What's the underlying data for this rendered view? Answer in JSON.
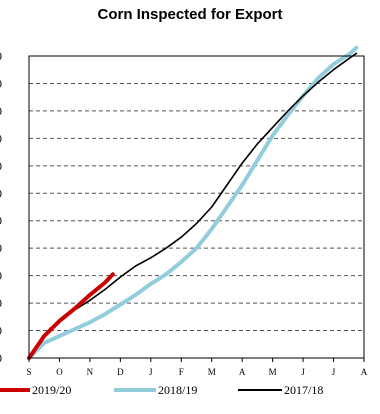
{
  "chart_data": {
    "type": "line",
    "title": "Corn Inspected for Export",
    "xlabel": "",
    "ylabel": "",
    "x_ticks": [
      "S",
      "O",
      "N",
      "D",
      "J",
      "F",
      "M",
      "A",
      "M",
      "J",
      "J",
      "A"
    ],
    "y_tick_labels": [
      "0",
      "0",
      "0",
      "0",
      "0",
      "0",
      "0",
      "0",
      "0",
      "0",
      "0",
      "0"
    ],
    "ylim": [
      0,
      11
    ],
    "grid": true,
    "legend_position": "bottom",
    "series": [
      {
        "name": "2019/20",
        "color": "#cc0000",
        "stroke_width": 4,
        "points": [
          [
            0,
            0
          ],
          [
            0.5,
            0.8
          ],
          [
            1,
            1.35
          ],
          [
            1.5,
            1.8
          ],
          [
            2,
            2.3
          ],
          [
            2.5,
            2.75
          ],
          [
            2.75,
            3.05
          ]
        ]
      },
      {
        "name": "2018/19",
        "color": "#92cddc",
        "stroke_width": 4,
        "points": [
          [
            0,
            0
          ],
          [
            0.5,
            0.55
          ],
          [
            1,
            0.8
          ],
          [
            1.5,
            1.05
          ],
          [
            2,
            1.3
          ],
          [
            2.5,
            1.6
          ],
          [
            3,
            1.95
          ],
          [
            3.5,
            2.3
          ],
          [
            4,
            2.7
          ],
          [
            4.5,
            3.05
          ],
          [
            5,
            3.5
          ],
          [
            5.5,
            4
          ],
          [
            6,
            4.7
          ],
          [
            6.5,
            5.5
          ],
          [
            7,
            6.3
          ],
          [
            7.5,
            7.2
          ],
          [
            8,
            8.1
          ],
          [
            8.5,
            8.85
          ],
          [
            9,
            9.55
          ],
          [
            9.5,
            10.2
          ],
          [
            10,
            10.7
          ],
          [
            10.5,
            11.05
          ],
          [
            10.75,
            11.3
          ]
        ]
      },
      {
        "name": "2017/18",
        "color": "#000000",
        "stroke_width": 1.6,
        "points": [
          [
            0,
            0
          ],
          [
            0.5,
            0.8
          ],
          [
            1,
            1.3
          ],
          [
            1.5,
            1.75
          ],
          [
            2,
            2.1
          ],
          [
            2.5,
            2.5
          ],
          [
            3,
            2.95
          ],
          [
            3.5,
            3.35
          ],
          [
            4,
            3.65
          ],
          [
            4.5,
            4
          ],
          [
            5,
            4.4
          ],
          [
            5.5,
            4.9
          ],
          [
            6,
            5.5
          ],
          [
            6.5,
            6.3
          ],
          [
            7,
            7.1
          ],
          [
            7.5,
            7.8
          ],
          [
            8,
            8.4
          ],
          [
            8.5,
            9
          ],
          [
            9,
            9.55
          ],
          [
            9.5,
            10.05
          ],
          [
            10,
            10.5
          ],
          [
            10.5,
            10.9
          ],
          [
            10.75,
            11.1
          ]
        ]
      }
    ]
  }
}
